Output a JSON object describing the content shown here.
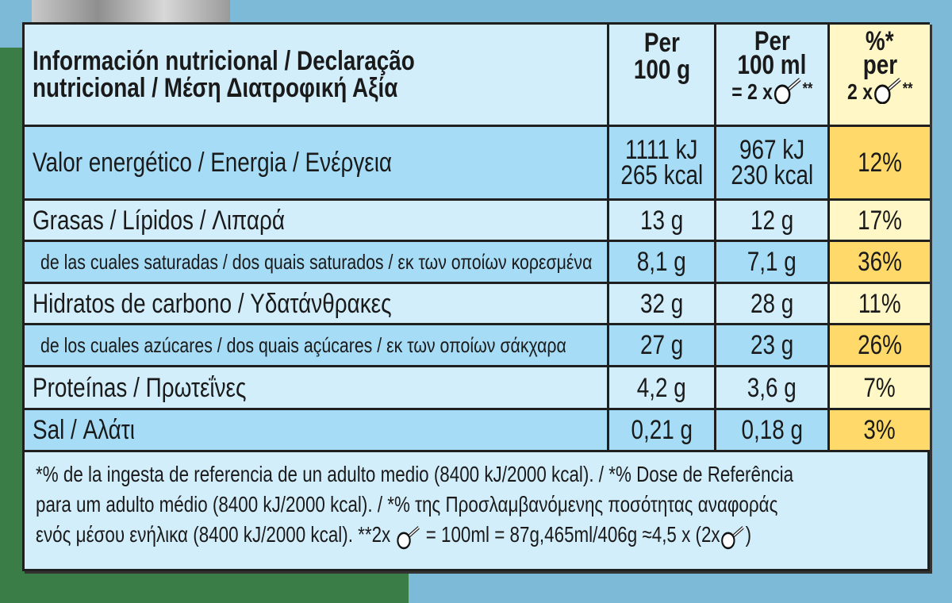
{
  "header": {
    "title_line1": "Información nutricional / Declaração",
    "title_line2": "nutricional / Μέση Διατροφική Αξία",
    "col1_line1": "Per",
    "col1_line2": "100 g",
    "col2_line1": "Per",
    "col2_line2": "100 ml",
    "col2_line3": "= 2 x",
    "col2_mark": "**",
    "col3_line1": "%*",
    "col3_line2": "per",
    "col3_line3": "2 x",
    "col3_mark": "**"
  },
  "rows": [
    {
      "label": "Valor energético / Energia / Ενέργεια",
      "per100g": "1111 kJ",
      "per100g_2": "265 kcal",
      "per100ml": "967 kJ",
      "per100ml_2": "230 kcal",
      "pct": "12%"
    },
    {
      "label": "Grasas / Lípidos / Λιπαρά",
      "per100g": "13 g",
      "per100ml": "12 g",
      "pct": "17%"
    },
    {
      "label": "de las cuales saturadas / dos quais saturados / εκ των οποίων κορεσμένα",
      "per100g": "8,1 g",
      "per100ml": "7,1 g",
      "pct": "36%"
    },
    {
      "label": "Hidratos de carbono / Υδατάνθρακες",
      "per100g": "32 g",
      "per100ml": "28 g",
      "pct": "11%"
    },
    {
      "label": "de los cuales azúcares / dos quais açúcares / εκ των οποίων σάκχαρα",
      "per100g": "27 g",
      "per100ml": "23 g",
      "pct": "26%"
    },
    {
      "label": "Proteínas / Πρωτεΐνες",
      "per100g": "4,2 g",
      "per100ml": "3,6 g",
      "pct": "7%"
    },
    {
      "label": "Sal / Αλάτι",
      "per100g": "0,21 g",
      "per100ml": "0,18 g",
      "pct": "3%"
    }
  ],
  "footer": {
    "line1": "*% de la ingesta de referencia de un adulto medio (8400 kJ/2000 kcal). / *% Dose de Referência",
    "line2": "para um adulto médio (8400 kJ/2000 kcal). / *% της Προσλαμβανόμενης ποσότητας αναφοράς",
    "line3a": "ενός μέσου ενήλικα (8400 kJ/2000 kcal).  **2x",
    "line3b": "= 100ml = 87g,465ml/406g ≈4,5 x (2x",
    "line3c": ")"
  },
  "colors": {
    "light_blue": "#d3eefb",
    "mid_blue": "#a6dcf6",
    "light_yellow": "#fff8c6",
    "orange_yellow": "#ffda6b",
    "background_blue": "#7dbad8",
    "background_green": "#3a7d47"
  },
  "icons": [
    "scoop-icon"
  ]
}
